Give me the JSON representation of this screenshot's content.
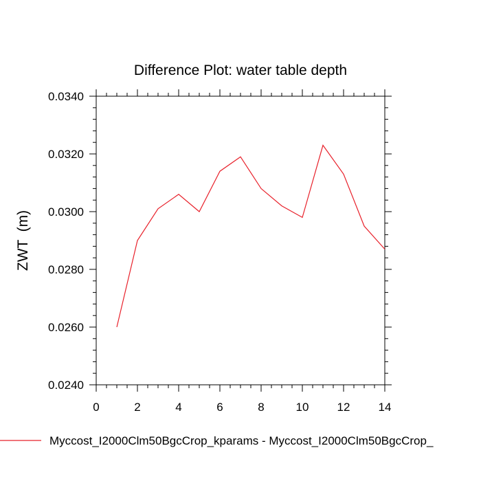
{
  "chart_data": {
    "type": "line",
    "title": "Difference Plot: water table depth",
    "xlabel": "",
    "ylabel": "ZWT  (m)",
    "xlim": [
      0,
      14
    ],
    "ylim": [
      0.024,
      0.034
    ],
    "x_ticks": [
      0,
      2,
      4,
      6,
      8,
      10,
      12,
      14
    ],
    "x_tick_labels": [
      "0",
      "2",
      "4",
      "6",
      "8",
      "10",
      "12",
      "14"
    ],
    "y_ticks": [
      0.024,
      0.026,
      0.028,
      0.03,
      0.032,
      0.034
    ],
    "y_tick_labels": [
      "0.0240",
      "0.0260",
      "0.0280",
      "0.0300",
      "0.0320",
      "0.0340"
    ],
    "grid": false,
    "legend_position": "bottom",
    "series": [
      {
        "name": "Myccost_I2000Clm50BgcCrop_kparams - Myccost_I2000Clm50BgcCrop_",
        "color": "#e8202a",
        "x": [
          1,
          2,
          3,
          4,
          5,
          6,
          7,
          8,
          9,
          10,
          11,
          12,
          13,
          14
        ],
        "values": [
          0.026,
          0.029,
          0.0301,
          0.0306,
          0.03,
          0.0314,
          0.0319,
          0.0308,
          0.0302,
          0.0298,
          0.0323,
          0.0313,
          0.0295,
          0.0287
        ]
      }
    ]
  }
}
